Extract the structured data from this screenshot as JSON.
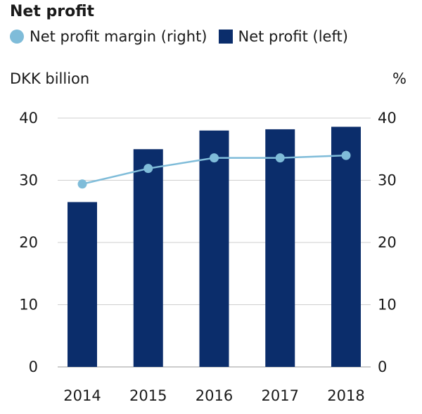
{
  "chart_data": {
    "type": "bar",
    "title": "Net profit",
    "categories": [
      "2014",
      "2015",
      "2016",
      "2017",
      "2018"
    ],
    "series": [
      {
        "name": "Net profit (left)",
        "kind": "bar",
        "axis": "left",
        "color": "#0b2d6b",
        "values": [
          26.5,
          35.0,
          38.0,
          38.2,
          38.6
        ]
      },
      {
        "name": "Net profit margin (right)",
        "kind": "line",
        "axis": "right",
        "color": "#7fbcd9",
        "values": [
          29.4,
          31.9,
          33.6,
          33.6,
          34.0
        ]
      }
    ],
    "ylabel_left": "DKK billion",
    "ylabel_right": "%",
    "ylim_left": [
      0,
      40
    ],
    "ylim_right": [
      0,
      40
    ],
    "yticks": [
      "0",
      "10",
      "20",
      "30",
      "40"
    ],
    "grid": true,
    "legend_position": "top-left"
  }
}
